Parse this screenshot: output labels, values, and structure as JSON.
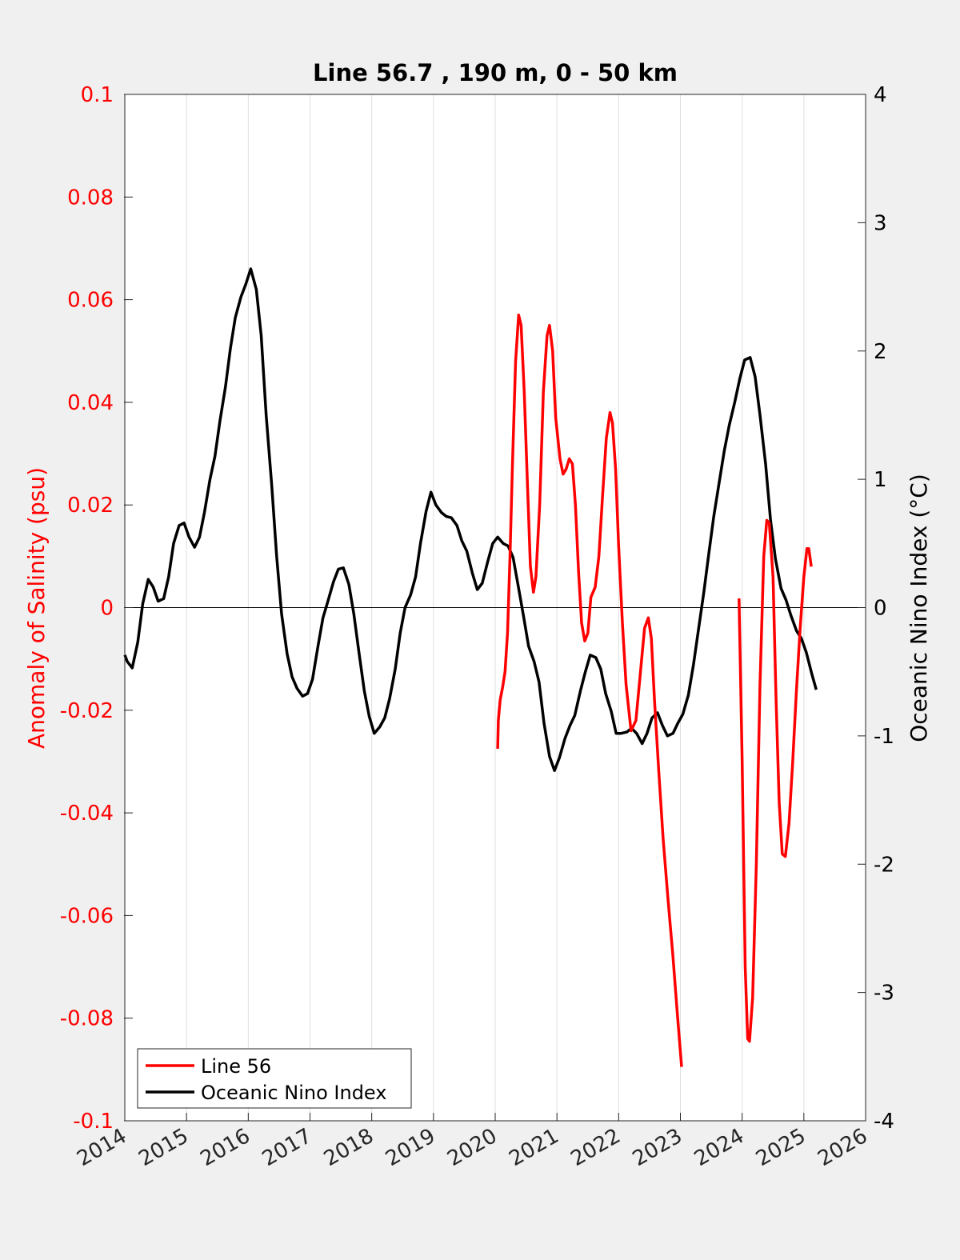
{
  "chart_data": {
    "type": "line",
    "title": "Line 56.7 , 190 m, 0 - 50 km",
    "xlabel": "",
    "ylabel_left": "Anomaly of Salinity (psu)",
    "ylabel_right": "Oceanic Nino Index (°C)",
    "xlim": [
      2014,
      2026
    ],
    "ylim_left": [
      -0.1,
      0.1
    ],
    "ylim_right": [
      -4,
      4
    ],
    "x_ticks": [
      "2014",
      "2015",
      "2016",
      "2017",
      "2018",
      "2019",
      "2020",
      "2021",
      "2022",
      "2023",
      "2024",
      "2025",
      "2026"
    ],
    "y_ticks_left": [
      "0.1",
      "0.08",
      "0.06",
      "0.04",
      "0.02",
      "0",
      "-0.02",
      "-0.04",
      "-0.06",
      "-0.08",
      "-0.1"
    ],
    "y_ticks_right": [
      "4",
      "3",
      "2",
      "1",
      "0",
      "-1",
      "-2",
      "-3",
      "-4"
    ],
    "grid": "vertical",
    "legend_position": "bottom-left",
    "colors": {
      "salinity": "#ff0000",
      "oni": "#000000",
      "left_axis": "#ff0000",
      "right_axis": "#000000"
    },
    "series": [
      {
        "name": "Line 56",
        "axis": "left",
        "segments": [
          [
            [
              2020.04,
              -0.0275
            ],
            [
              2020.05,
              -0.022
            ],
            [
              2020.08,
              -0.018
            ],
            [
              2020.12,
              -0.0155
            ],
            [
              2020.16,
              -0.0125
            ],
            [
              2020.2,
              -0.005
            ],
            [
              2020.24,
              0.01
            ],
            [
              2020.28,
              0.028
            ],
            [
              2020.33,
              0.048
            ],
            [
              2020.38,
              0.057
            ],
            [
              2020.42,
              0.055
            ],
            [
              2020.47,
              0.042
            ],
            [
              2020.52,
              0.025
            ],
            [
              2020.57,
              0.008
            ],
            [
              2020.62,
              0.003
            ],
            [
              2020.66,
              0.006
            ],
            [
              2020.72,
              0.02
            ],
            [
              2020.78,
              0.042
            ],
            [
              2020.84,
              0.053
            ],
            [
              2020.88,
              0.055
            ],
            [
              2020.93,
              0.05
            ],
            [
              2020.98,
              0.037
            ],
            [
              2021.05,
              0.029
            ],
            [
              2021.1,
              0.026
            ],
            [
              2021.15,
              0.027
            ],
            [
              2021.2,
              0.029
            ],
            [
              2021.25,
              0.028
            ],
            [
              2021.3,
              0.02
            ],
            [
              2021.35,
              0.007
            ],
            [
              2021.4,
              -0.003
            ],
            [
              2021.45,
              -0.0065
            ],
            [
              2021.5,
              -0.005
            ],
            [
              2021.55,
              0.002
            ],
            [
              2021.62,
              0.004
            ],
            [
              2021.68,
              0.01
            ],
            [
              2021.74,
              0.022
            ],
            [
              2021.8,
              0.033
            ],
            [
              2021.86,
              0.038
            ],
            [
              2021.9,
              0.036
            ],
            [
              2021.95,
              0.027
            ],
            [
              2022.0,
              0.012
            ],
            [
              2022.06,
              -0.003
            ],
            [
              2022.12,
              -0.015
            ],
            [
              2022.2,
              -0.024
            ],
            [
              2022.28,
              -0.022
            ],
            [
              2022.35,
              -0.013
            ],
            [
              2022.42,
              -0.004
            ],
            [
              2022.48,
              -0.002
            ],
            [
              2022.53,
              -0.006
            ],
            [
              2022.58,
              -0.018
            ],
            [
              2022.65,
              -0.032
            ],
            [
              2022.72,
              -0.045
            ],
            [
              2022.8,
              -0.057
            ],
            [
              2022.88,
              -0.068
            ],
            [
              2022.95,
              -0.079
            ],
            [
              2023.02,
              -0.0895
            ]
          ],
          [
            [
              2023.95,
              0.0018
            ],
            [
              2024.0,
              -0.03
            ],
            [
              2024.05,
              -0.07
            ],
            [
              2024.09,
              -0.084
            ],
            [
              2024.12,
              -0.0845
            ],
            [
              2024.17,
              -0.076
            ],
            [
              2024.23,
              -0.05
            ],
            [
              2024.29,
              -0.015
            ],
            [
              2024.35,
              0.01
            ],
            [
              2024.4,
              0.017
            ],
            [
              2024.44,
              0.0165
            ],
            [
              2024.5,
              0.006
            ],
            [
              2024.55,
              -0.018
            ],
            [
              2024.6,
              -0.038
            ],
            [
              2024.65,
              -0.048
            ],
            [
              2024.7,
              -0.0485
            ],
            [
              2024.76,
              -0.042
            ],
            [
              2024.82,
              -0.03
            ],
            [
              2024.88,
              -0.016
            ],
            [
              2024.94,
              -0.004
            ],
            [
              2025.0,
              0.006
            ],
            [
              2025.05,
              0.0115
            ],
            [
              2025.08,
              0.0115
            ],
            [
              2025.12,
              0.008
            ]
          ]
        ]
      },
      {
        "name": "Oceanic Nino Index",
        "axis": "right",
        "segments": [
          [
            [
              2014.0,
              -0.37
            ],
            [
              2014.04,
              -0.42
            ],
            [
              2014.12,
              -0.47
            ],
            [
              2014.21,
              -0.27
            ],
            [
              2014.29,
              0.03
            ],
            [
              2014.38,
              0.22
            ],
            [
              2014.46,
              0.16
            ],
            [
              2014.54,
              0.05
            ],
            [
              2014.63,
              0.07
            ],
            [
              2014.71,
              0.24
            ],
            [
              2014.79,
              0.5
            ],
            [
              2014.88,
              0.64
            ],
            [
              2014.96,
              0.66
            ],
            [
              2015.04,
              0.55
            ],
            [
              2015.13,
              0.47
            ],
            [
              2015.21,
              0.55
            ],
            [
              2015.29,
              0.74
            ],
            [
              2015.38,
              1.0
            ],
            [
              2015.46,
              1.18
            ],
            [
              2015.54,
              1.45
            ],
            [
              2015.63,
              1.72
            ],
            [
              2015.71,
              2.02
            ],
            [
              2015.79,
              2.26
            ],
            [
              2015.88,
              2.42
            ],
            [
              2015.96,
              2.52
            ],
            [
              2016.04,
              2.64
            ],
            [
              2016.13,
              2.48
            ],
            [
              2016.21,
              2.12
            ],
            [
              2016.29,
              1.5
            ],
            [
              2016.38,
              0.95
            ],
            [
              2016.46,
              0.4
            ],
            [
              2016.54,
              -0.05
            ],
            [
              2016.63,
              -0.36
            ],
            [
              2016.71,
              -0.54
            ],
            [
              2016.79,
              -0.63
            ],
            [
              2016.88,
              -0.69
            ],
            [
              2016.96,
              -0.67
            ],
            [
              2017.04,
              -0.56
            ],
            [
              2017.13,
              -0.3
            ],
            [
              2017.21,
              -0.08
            ],
            [
              2017.29,
              0.05
            ],
            [
              2017.38,
              0.2
            ],
            [
              2017.46,
              0.3
            ],
            [
              2017.54,
              0.31
            ],
            [
              2017.63,
              0.18
            ],
            [
              2017.71,
              -0.05
            ],
            [
              2017.79,
              -0.34
            ],
            [
              2017.88,
              -0.65
            ],
            [
              2017.96,
              -0.85
            ],
            [
              2018.04,
              -0.98
            ],
            [
              2018.13,
              -0.93
            ],
            [
              2018.21,
              -0.86
            ],
            [
              2018.29,
              -0.71
            ],
            [
              2018.38,
              -0.48
            ],
            [
              2018.46,
              -0.2
            ],
            [
              2018.54,
              0.0
            ],
            [
              2018.63,
              0.1
            ],
            [
              2018.71,
              0.24
            ],
            [
              2018.79,
              0.5
            ],
            [
              2018.88,
              0.75
            ],
            [
              2018.96,
              0.9
            ],
            [
              2019.04,
              0.8
            ],
            [
              2019.13,
              0.74
            ],
            [
              2019.21,
              0.71
            ],
            [
              2019.29,
              0.7
            ],
            [
              2019.38,
              0.64
            ],
            [
              2019.46,
              0.52
            ],
            [
              2019.54,
              0.44
            ],
            [
              2019.63,
              0.27
            ],
            [
              2019.71,
              0.14
            ],
            [
              2019.79,
              0.19
            ],
            [
              2019.88,
              0.36
            ],
            [
              2019.96,
              0.5
            ],
            [
              2020.04,
              0.55
            ],
            [
              2020.13,
              0.5
            ],
            [
              2020.21,
              0.48
            ],
            [
              2020.29,
              0.39
            ],
            [
              2020.38,
              0.15
            ],
            [
              2020.46,
              -0.07
            ],
            [
              2020.54,
              -0.3
            ],
            [
              2020.63,
              -0.42
            ],
            [
              2020.71,
              -0.58
            ],
            [
              2020.79,
              -0.9
            ],
            [
              2020.88,
              -1.16
            ],
            [
              2020.96,
              -1.27
            ],
            [
              2021.04,
              -1.17
            ],
            [
              2021.13,
              -1.02
            ],
            [
              2021.21,
              -0.92
            ],
            [
              2021.29,
              -0.84
            ],
            [
              2021.38,
              -0.65
            ],
            [
              2021.46,
              -0.5
            ],
            [
              2021.54,
              -0.37
            ],
            [
              2021.63,
              -0.39
            ],
            [
              2021.71,
              -0.48
            ],
            [
              2021.79,
              -0.67
            ],
            [
              2021.88,
              -0.81
            ],
            [
              2021.96,
              -0.98
            ],
            [
              2022.04,
              -0.98
            ],
            [
              2022.13,
              -0.97
            ],
            [
              2022.21,
              -0.94
            ],
            [
              2022.29,
              -0.98
            ],
            [
              2022.38,
              -1.06
            ],
            [
              2022.46,
              -0.98
            ],
            [
              2022.54,
              -0.86
            ],
            [
              2022.63,
              -0.82
            ],
            [
              2022.71,
              -0.92
            ],
            [
              2022.79,
              -1.0
            ],
            [
              2022.88,
              -0.98
            ],
            [
              2022.96,
              -0.9
            ],
            [
              2023.04,
              -0.83
            ],
            [
              2023.13,
              -0.68
            ],
            [
              2023.21,
              -0.45
            ],
            [
              2023.29,
              -0.18
            ],
            [
              2023.38,
              0.12
            ],
            [
              2023.46,
              0.42
            ],
            [
              2023.54,
              0.71
            ],
            [
              2023.63,
              0.98
            ],
            [
              2023.71,
              1.22
            ],
            [
              2023.79,
              1.42
            ],
            [
              2023.88,
              1.6
            ],
            [
              2023.96,
              1.78
            ],
            [
              2024.04,
              1.93
            ],
            [
              2024.13,
              1.95
            ],
            [
              2024.21,
              1.8
            ],
            [
              2024.29,
              1.5
            ],
            [
              2024.38,
              1.12
            ],
            [
              2024.46,
              0.68
            ],
            [
              2024.54,
              0.38
            ],
            [
              2024.63,
              0.15
            ],
            [
              2024.71,
              0.06
            ],
            [
              2024.79,
              -0.06
            ],
            [
              2024.88,
              -0.18
            ],
            [
              2024.96,
              -0.24
            ],
            [
              2025.04,
              -0.35
            ],
            [
              2025.13,
              -0.52
            ],
            [
              2025.2,
              -0.64
            ]
          ]
        ]
      }
    ]
  }
}
